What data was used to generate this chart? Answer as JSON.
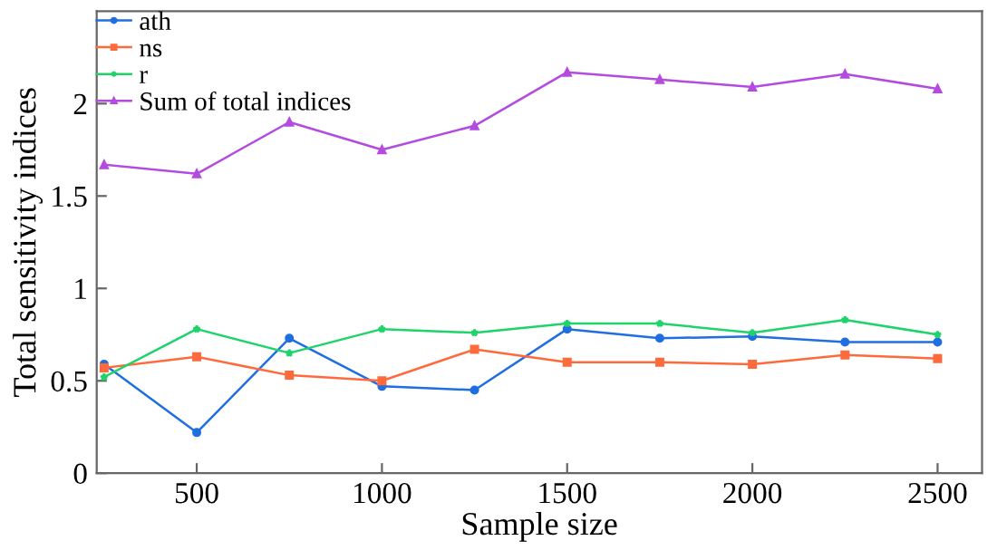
{
  "chart_data": {
    "type": "line",
    "xlabel": "Sample size",
    "ylabel": "Total sensitivity indices",
    "x": [
      250,
      500,
      750,
      1000,
      1250,
      1500,
      1750,
      2000,
      2250,
      2500
    ],
    "series": [
      {
        "name": "ath",
        "color": "#1f6fe0",
        "marker": "circle",
        "values": [
          0.59,
          0.22,
          0.73,
          0.47,
          0.45,
          0.78,
          0.73,
          0.74,
          0.71,
          0.71
        ]
      },
      {
        "name": "ns",
        "color": "#ff6a3d",
        "marker": "square",
        "values": [
          0.57,
          0.63,
          0.53,
          0.5,
          0.67,
          0.6,
          0.6,
          0.59,
          0.64,
          0.62
        ]
      },
      {
        "name": "r",
        "color": "#1ed46a",
        "marker": "star",
        "values": [
          0.52,
          0.78,
          0.65,
          0.78,
          0.76,
          0.81,
          0.81,
          0.76,
          0.83,
          0.75
        ]
      },
      {
        "name": "Sum of total indices",
        "color": "#b44be0",
        "marker": "triangle",
        "values": [
          1.67,
          1.62,
          1.9,
          1.75,
          1.88,
          2.17,
          2.13,
          2.09,
          2.16,
          2.08
        ]
      }
    ],
    "xlim": [
      230,
      2620
    ],
    "ylim": [
      0,
      2.5
    ],
    "xticks": [
      500,
      1000,
      1500,
      2000,
      2500
    ],
    "yticks": [
      0,
      0.5,
      1,
      1.5,
      2
    ],
    "grid": false,
    "legend": "top left",
    "line_style": "solid"
  }
}
